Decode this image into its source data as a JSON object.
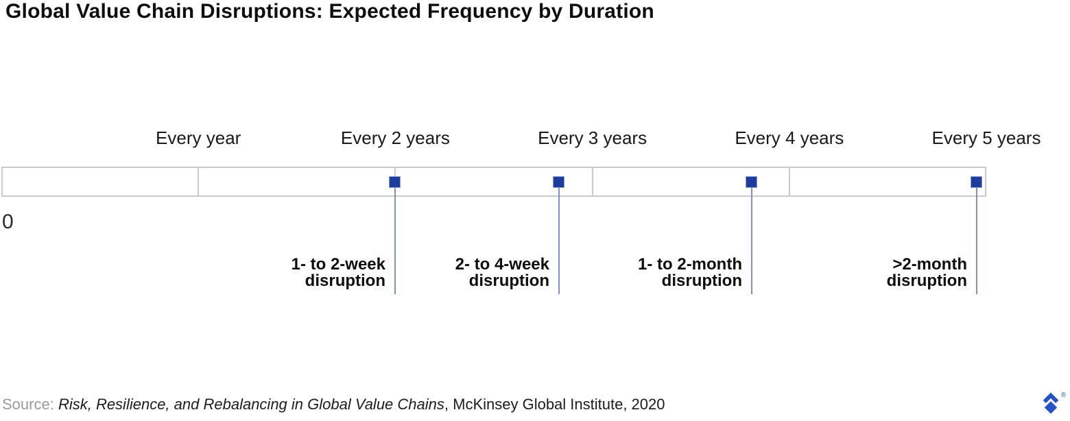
{
  "chart_data": {
    "type": "scatter",
    "title": "Global Value Chain Disruptions: Expected Frequency by Duration",
    "xlabel": "",
    "ylabel": "",
    "xlim": [
      0,
      5
    ],
    "grid": "vertical-dividers",
    "legend": false,
    "origin_label": "0",
    "x_ticks": [
      {
        "value": 1,
        "label": "Every year"
      },
      {
        "value": 2,
        "label": "Every 2 years"
      },
      {
        "value": 3,
        "label": "Every 3 years"
      },
      {
        "value": 4,
        "label": "Every 4 years"
      },
      {
        "value": 5,
        "label": "Every 5 years"
      }
    ],
    "points": [
      {
        "x": 2.0,
        "label": "1- to 2-week disruption",
        "label_lines": [
          "1- to 2-week",
          "disruption"
        ]
      },
      {
        "x": 2.83,
        "label": "2- to 4-week disruption",
        "label_lines": [
          "2- to 4-week",
          "disruption"
        ]
      },
      {
        "x": 3.81,
        "label": "1- to 2-month disruption",
        "label_lines": [
          "1- to 2-month",
          "disruption"
        ]
      },
      {
        "x": 4.95,
        "label": ">2-month disruption",
        "label_lines": [
          ">2-month",
          "disruption"
        ]
      }
    ],
    "point_marker": "square",
    "marker_color": "#1d3d9c",
    "stem_color": "#7c90ca",
    "band_border_color": "#c9cacd"
  },
  "source": {
    "prefix": "Source: ",
    "cited_work": "Risk, Resilience, and Rebalancing in Global Value Chains",
    "suffix": ", McKinsey Global Institute, 2020"
  },
  "logo": {
    "registered_symbol": "®",
    "color": "#2553c4"
  }
}
